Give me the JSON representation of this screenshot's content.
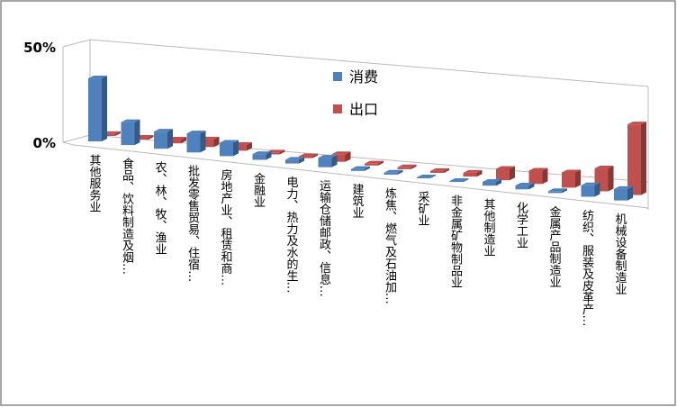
{
  "chart_data": {
    "type": "bar3d",
    "categories": [
      "其他服务业",
      "食品、饮料制造及烟…",
      "农、林、牧、渔业",
      "批发零售贸易、住宿…",
      "房地产业、租赁和商…",
      "金融业",
      "电力、热力及水的生…",
      "运输仓储邮政、信息…",
      "建筑业",
      "炼焦、燃气及石油加…",
      "采矿业",
      "非金属矿物制品业",
      "其他制造业",
      "化学工业",
      "金属产品制造业",
      "纺织、服装及皮革产…",
      "机械设备制造业"
    ],
    "series": [
      {
        "name": "消费",
        "color": "#4f81bd",
        "values": [
          33,
          12,
          9,
          10,
          7,
          3,
          2,
          5,
          1,
          1,
          0.5,
          0.5,
          2,
          2,
          1,
          6,
          6
        ]
      },
      {
        "name": "出口",
        "color": "#c0504d",
        "values": [
          1,
          1,
          2,
          4,
          3,
          1,
          1,
          4,
          1,
          1,
          1,
          2,
          6,
          7,
          8,
          12,
          37
        ]
      }
    ],
    "ylim": [
      0,
      50
    ],
    "yticks": [
      {
        "value": 0,
        "label": "0%"
      },
      {
        "value": 50,
        "label": "50%"
      }
    ]
  }
}
